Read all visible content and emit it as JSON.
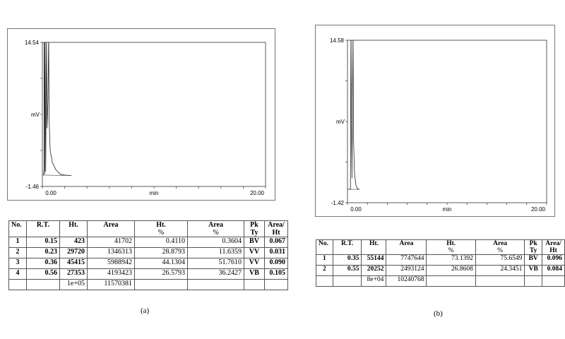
{
  "chart_data": [
    {
      "type": "line",
      "panel_label": "(a)",
      "ylabel": "mV",
      "xlabel": "min",
      "ylim": [
        -1.46,
        14.54
      ],
      "xlim": [
        0.0,
        20.0
      ],
      "y_tick_labels": [
        "14.54",
        "-1.46"
      ],
      "x_tick_labels": [
        "0.00",
        "20.00"
      ],
      "ymid_label": "mV",
      "xmid_label": "min",
      "series": [
        {
          "x": [
            0.0,
            0.1,
            0.15,
            0.16,
            0.2,
            0.23,
            0.24,
            0.3,
            0.36,
            0.37,
            0.42,
            0.5,
            0.56,
            0.57,
            0.6,
            0.7,
            0.9,
            1.2,
            1.6,
            2.0,
            2.6
          ],
          "y": [
            -0.2,
            -0.2,
            0.4,
            14.54,
            -0.1,
            14.54,
            14.54,
            0.2,
            14.54,
            14.54,
            5.0,
            8.0,
            14.54,
            14.54,
            6.0,
            2.5,
            1.2,
            0.4,
            -0.1,
            -0.2,
            -0.25
          ]
        }
      ]
    },
    {
      "type": "line",
      "panel_label": "(b)",
      "ylabel": "mV",
      "xlabel": "min",
      "ylim": [
        -1.42,
        14.58
      ],
      "xlim": [
        0.0,
        20.0
      ],
      "y_tick_labels": [
        "14.58",
        "-1.42"
      ],
      "x_tick_labels": [
        "0.00",
        "20.00"
      ],
      "ymid_label": "mV",
      "xmid_label": "min",
      "series": [
        {
          "x": [
            0.0,
            0.3,
            0.35,
            0.36,
            0.45,
            0.55,
            0.56,
            0.6,
            0.7,
            0.85,
            1.0,
            1.2
          ],
          "y": [
            -0.1,
            -0.1,
            14.58,
            14.58,
            1.0,
            14.58,
            14.58,
            5.0,
            1.5,
            0.3,
            -0.05,
            -0.1
          ]
        }
      ]
    }
  ],
  "table_a": {
    "headers": [
      [
        "No."
      ],
      [
        "R.T."
      ],
      [
        "Ht."
      ],
      [
        "Area"
      ],
      [
        "Ht.",
        "%"
      ],
      [
        "Area",
        "%"
      ],
      [
        "Pk",
        "Ty"
      ],
      [
        "Area/",
        "Ht"
      ]
    ],
    "rows": [
      [
        "1",
        "0.15",
        "423",
        "41702",
        "0.4110",
        "0.3604",
        "BV",
        "0.067"
      ],
      [
        "2",
        "0.23",
        "29720",
        "1346313",
        "28.8793",
        "11.6359",
        "VV",
        "0.031"
      ],
      [
        "3",
        "0.36",
        "45415",
        "5988942",
        "44.1304",
        "51.7610",
        "VV",
        "0.090"
      ],
      [
        "4",
        "0.56",
        "27353",
        "4193423",
        "26.5793",
        "36.2427",
        "VB",
        "0.105"
      ]
    ],
    "totals": [
      "",
      "",
      "1e+05",
      "11570381",
      "",
      "",
      "",
      ""
    ]
  },
  "table_b": {
    "headers": [
      [
        "No."
      ],
      [
        "R.T."
      ],
      [
        "Ht."
      ],
      [
        "Area"
      ],
      [
        "Ht.",
        "%"
      ],
      [
        "Area",
        "%"
      ],
      [
        "Pk",
        "Ty"
      ],
      [
        "Area/",
        "Ht"
      ]
    ],
    "rows": [
      [
        "1",
        "0.35",
        "55144",
        "7747644",
        "73.1392",
        "75.6549",
        "BV",
        "0.096"
      ],
      [
        "2",
        "0.55",
        "20252",
        "2493124",
        "26.8608",
        "24.3451",
        "VB",
        "0.084"
      ]
    ],
    "totals": [
      "",
      "",
      "8e+04",
      "10240768",
      "",
      "",
      "",
      ""
    ]
  },
  "labels": {
    "a": "(a)",
    "b": "(b)"
  }
}
